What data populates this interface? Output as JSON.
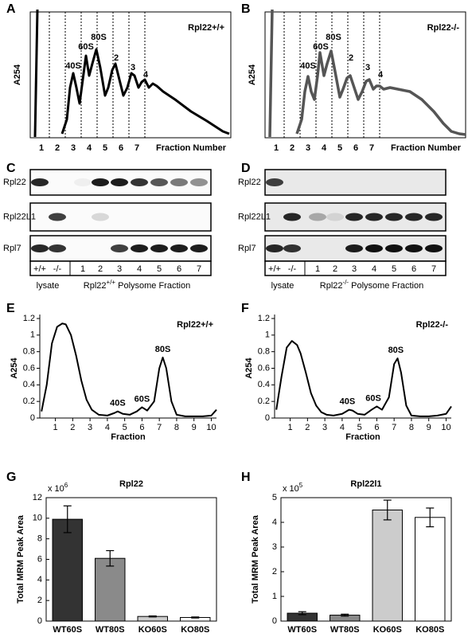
{
  "profiles": [
    {
      "letter": "A",
      "genotype": "Rpl22+/+",
      "y_label": "A254",
      "x_label": "Fraction Number",
      "fractions": [
        "1",
        "2",
        "3",
        "4",
        "5",
        "6",
        "7"
      ],
      "peaks": [
        "40S",
        "60S",
        "80S",
        "2",
        "3",
        "4"
      ]
    },
    {
      "letter": "B",
      "genotype": "Rpl22-/-",
      "y_label": "A254",
      "x_label": "Fraction Number",
      "fractions": [
        "1",
        "2",
        "3",
        "4",
        "5",
        "6",
        "7"
      ],
      "peaks": [
        "40S",
        "60S",
        "80S",
        "2",
        "3",
        "4"
      ]
    }
  ],
  "blots": [
    {
      "letter": "C",
      "proteins": [
        "Rpl22",
        "Rpl22L1",
        "Rpl7"
      ],
      "lanes": [
        "+/+",
        "-/-",
        "1",
        "2",
        "3",
        "4",
        "5",
        "6",
        "7"
      ],
      "lysate": "lysate",
      "caption_gene": "Rpl22",
      "caption_genotype": "+/+",
      "caption_text": "Polysome Fraction"
    },
    {
      "letter": "D",
      "proteins": [
        "Rpl22",
        "Rpl22L1",
        "Rpl7"
      ],
      "lanes": [
        "+/+",
        "-/-",
        "1",
        "2",
        "3",
        "4",
        "5",
        "6",
        "7"
      ],
      "lysate": "lysate",
      "caption_gene": "Rpl22",
      "caption_genotype": "-/-",
      "caption_text": "Polysome Fraction"
    }
  ],
  "chart_data": [
    {
      "type": "line",
      "panel": "E",
      "label": "Rpl22+/+",
      "x_label": "Fraction",
      "y_label": "A254",
      "color": "#000000",
      "x": [
        0.2,
        0.5,
        0.8,
        1.1,
        1.4,
        1.6,
        1.9,
        2.2,
        2.5,
        2.8,
        3.1,
        3.5,
        4.0,
        4.4,
        4.6,
        4.9,
        5.3,
        5.7,
        6.0,
        6.3,
        6.7,
        7.0,
        7.2,
        7.4,
        7.7,
        8.0,
        8.5,
        9.0,
        9.5,
        10.0,
        10.3
      ],
      "values": [
        0.08,
        0.4,
        0.9,
        1.1,
        1.14,
        1.13,
        1.0,
        0.75,
        0.45,
        0.22,
        0.1,
        0.04,
        0.03,
        0.06,
        0.08,
        0.05,
        0.04,
        0.08,
        0.13,
        0.09,
        0.2,
        0.6,
        0.73,
        0.6,
        0.2,
        0.04,
        0.02,
        0.02,
        0.02,
        0.03,
        0.1
      ],
      "annotations": [
        "40S",
        "60S",
        "80S"
      ],
      "xlim": [
        0.1,
        10.3
      ],
      "xticks": [
        1,
        2,
        3,
        4,
        5,
        6,
        7,
        8,
        9,
        10
      ],
      "ylim": [
        0,
        1.2
      ],
      "yticks": [
        0,
        0.2,
        0.4,
        0.6,
        0.8,
        1,
        1.2
      ]
    },
    {
      "type": "line",
      "panel": "F",
      "label": "Rpl22-/-",
      "x_label": "Fraction",
      "y_label": "A254",
      "color": "#000000",
      "x": [
        0.2,
        0.5,
        0.8,
        1.1,
        1.4,
        1.6,
        1.9,
        2.2,
        2.5,
        2.8,
        3.1,
        3.5,
        4.0,
        4.4,
        4.6,
        4.9,
        5.3,
        5.7,
        6.0,
        6.3,
        6.7,
        7.0,
        7.2,
        7.4,
        7.7,
        8.0,
        8.5,
        9.0,
        9.5,
        10.0,
        10.3
      ],
      "values": [
        0.1,
        0.5,
        0.85,
        0.93,
        0.88,
        0.78,
        0.55,
        0.3,
        0.15,
        0.07,
        0.04,
        0.03,
        0.05,
        0.1,
        0.09,
        0.05,
        0.04,
        0.1,
        0.14,
        0.1,
        0.25,
        0.65,
        0.72,
        0.55,
        0.15,
        0.03,
        0.02,
        0.02,
        0.03,
        0.05,
        0.14
      ],
      "annotations": [
        "40S",
        "60S",
        "80S"
      ],
      "xlim": [
        0.1,
        10.3
      ],
      "xticks": [
        1,
        2,
        3,
        4,
        5,
        6,
        7,
        8,
        9,
        10
      ],
      "ylim": [
        0,
        1.2
      ],
      "yticks": [
        0,
        0.2,
        0.4,
        0.6,
        0.8,
        1,
        1.2
      ]
    },
    {
      "type": "bar",
      "panel": "G",
      "title": "Rpl22",
      "y_label": "Total MRM Peak Area",
      "scale_base": "x 10",
      "scale_exponent": "6",
      "categories": [
        "WT60S",
        "WT80S",
        "KO60S",
        "KO80S"
      ],
      "values": [
        9.9,
        6.1,
        0.45,
        0.35
      ],
      "errors": [
        1.3,
        0.75,
        0.05,
        0.05
      ],
      "colors": [
        "#333333",
        "#8a8a8a",
        "#cccccc",
        "#ffffff"
      ],
      "ylim": [
        0,
        12
      ],
      "yticks": [
        0,
        2,
        4,
        6,
        8,
        10,
        12
      ]
    },
    {
      "type": "bar",
      "panel": "H",
      "title": "Rpl22l1",
      "y_label": "Total MRM Peak Area",
      "scale_base": "x 10",
      "scale_exponent": "5",
      "categories": [
        "WT60S",
        "WT80S",
        "KO60S",
        "KO80S"
      ],
      "values": [
        0.32,
        0.24,
        4.5,
        4.2
      ],
      "errors": [
        0.06,
        0.04,
        0.4,
        0.38
      ],
      "colors": [
        "#333333",
        "#8a8a8a",
        "#cccccc",
        "#ffffff"
      ],
      "ylim": [
        0,
        5
      ],
      "yticks": [
        0,
        1,
        2,
        3,
        4,
        5
      ]
    }
  ]
}
